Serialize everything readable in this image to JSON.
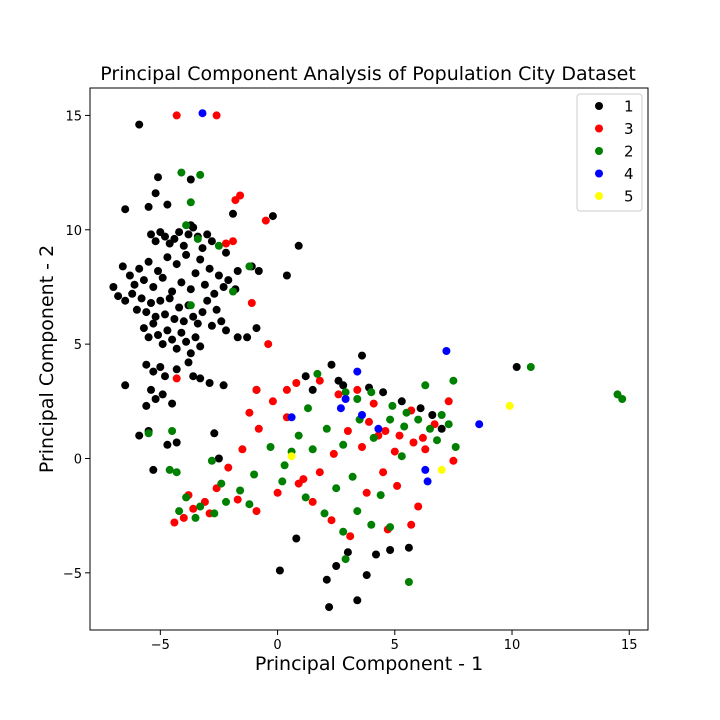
{
  "chart_data": {
    "type": "scatter",
    "title": "Principal Component Analysis of Population City Dataset",
    "xlabel": "Principal Component - 1",
    "ylabel": "Principal Component - 2",
    "xlim": [
      -8.0,
      15.8
    ],
    "ylim": [
      -7.5,
      16.2
    ],
    "xticks": [
      -5,
      0,
      5,
      10,
      15
    ],
    "yticks": [
      -5,
      0,
      5,
      10,
      15
    ],
    "xtick_labels": [
      "−5",
      "0",
      "5",
      "10",
      "15"
    ],
    "ytick_labels": [
      "−5",
      "0",
      "5",
      "10",
      "15"
    ],
    "grid": false,
    "legend_position": "top-right",
    "series": [
      {
        "name": "1",
        "color": "#000000",
        "points": [
          [
            -5.9,
            14.6
          ],
          [
            -5.1,
            12.3
          ],
          [
            -5.2,
            11.6
          ],
          [
            -6.5,
            10.9
          ],
          [
            -5.5,
            11.0
          ],
          [
            -4.7,
            11.1
          ],
          [
            -3.7,
            12.2
          ],
          [
            -1.9,
            10.7
          ],
          [
            -0.2,
            10.6
          ],
          [
            0.9,
            9.3
          ],
          [
            -2.2,
            9.0
          ],
          [
            -1.7,
            8.2
          ],
          [
            -1.1,
            8.4
          ],
          [
            -0.8,
            8.2
          ],
          [
            0.4,
            8.0
          ],
          [
            -5.4,
            9.8
          ],
          [
            -5.2,
            9.5
          ],
          [
            -5.0,
            9.9
          ],
          [
            -4.8,
            9.7
          ],
          [
            -4.6,
            9.4
          ],
          [
            -4.4,
            9.6
          ],
          [
            -4.2,
            9.9
          ],
          [
            -4.0,
            9.3
          ],
          [
            -3.8,
            9.8
          ],
          [
            -3.6,
            10.1
          ],
          [
            -3.4,
            9.7
          ],
          [
            -3.2,
            9.2
          ],
          [
            -3.0,
            9.8
          ],
          [
            -2.8,
            9.5
          ],
          [
            -3.7,
            10.2
          ],
          [
            -6.6,
            8.4
          ],
          [
            -6.3,
            8.0
          ],
          [
            -6.1,
            7.6
          ],
          [
            -5.9,
            8.3
          ],
          [
            -5.7,
            7.8
          ],
          [
            -5.5,
            8.6
          ],
          [
            -5.3,
            7.5
          ],
          [
            -5.1,
            8.2
          ],
          [
            -4.9,
            7.9
          ],
          [
            -4.7,
            8.8
          ],
          [
            -4.5,
            7.3
          ],
          [
            -4.3,
            8.5
          ],
          [
            -4.1,
            7.7
          ],
          [
            -3.9,
            8.9
          ],
          [
            -3.7,
            7.4
          ],
          [
            -3.5,
            8.1
          ],
          [
            -3.3,
            8.7
          ],
          [
            -3.1,
            7.6
          ],
          [
            -2.9,
            8.3
          ],
          [
            -2.7,
            7.2
          ],
          [
            -2.5,
            8.0
          ],
          [
            -2.3,
            7.5
          ],
          [
            -2.1,
            7.8
          ],
          [
            -1.8,
            7.4
          ],
          [
            -7.0,
            7.5
          ],
          [
            -6.8,
            7.1
          ],
          [
            -6.5,
            6.9
          ],
          [
            -6.2,
            7.2
          ],
          [
            -6.0,
            6.5
          ],
          [
            -5.8,
            7.0
          ],
          [
            -5.6,
            6.4
          ],
          [
            -5.4,
            6.8
          ],
          [
            -5.2,
            6.2
          ],
          [
            -5.0,
            6.9
          ],
          [
            -4.8,
            6.3
          ],
          [
            -4.6,
            7.0
          ],
          [
            -4.4,
            6.1
          ],
          [
            -4.2,
            6.6
          ],
          [
            -4.0,
            6.0
          ],
          [
            -3.8,
            6.7
          ],
          [
            -3.6,
            6.2
          ],
          [
            -3.4,
            5.9
          ],
          [
            -3.2,
            6.4
          ],
          [
            -3.0,
            6.9
          ],
          [
            -2.8,
            5.8
          ],
          [
            -2.6,
            6.5
          ],
          [
            -2.4,
            6.0
          ],
          [
            -2.2,
            5.6
          ],
          [
            -5.7,
            5.7
          ],
          [
            -5.5,
            5.3
          ],
          [
            -5.3,
            5.9
          ],
          [
            -5.1,
            5.4
          ],
          [
            -4.9,
            5.0
          ],
          [
            -4.7,
            5.6
          ],
          [
            -4.5,
            5.2
          ],
          [
            -4.3,
            4.8
          ],
          [
            -4.1,
            5.5
          ],
          [
            -3.9,
            5.1
          ],
          [
            -3.7,
            4.6
          ],
          [
            -3.5,
            5.3
          ],
          [
            -3.3,
            4.9
          ],
          [
            -1.7,
            5.3
          ],
          [
            -1.3,
            5.3
          ],
          [
            -0.9,
            5.7
          ],
          [
            -5.6,
            4.1
          ],
          [
            -5.3,
            3.8
          ],
          [
            -5.0,
            4.0
          ],
          [
            -4.8,
            3.6
          ],
          [
            -4.3,
            3.9
          ],
          [
            -3.8,
            4.2
          ],
          [
            -3.6,
            3.6
          ],
          [
            -6.5,
            3.2
          ],
          [
            -5.4,
            3.0
          ],
          [
            -5.2,
            2.6
          ],
          [
            -5.6,
            2.3
          ],
          [
            -4.9,
            2.8
          ],
          [
            -4.5,
            2.4
          ],
          [
            -3.3,
            3.5
          ],
          [
            -2.9,
            3.3
          ],
          [
            -2.3,
            3.2
          ],
          [
            -0.9,
            3.0
          ],
          [
            -5.9,
            1.0
          ],
          [
            -5.5,
            1.2
          ],
          [
            -4.7,
            0.6
          ],
          [
            -4.3,
            0.7
          ],
          [
            -5.3,
            -0.5
          ],
          [
            -2.7,
            1.1
          ],
          [
            -2.5,
            0.0
          ],
          [
            2.2,
            -6.5
          ],
          [
            3.4,
            -6.2
          ],
          [
            0.1,
            -4.9
          ],
          [
            2.1,
            -5.3
          ],
          [
            2.5,
            -4.7
          ],
          [
            4.8,
            -4.0
          ],
          [
            4.2,
            -4.2
          ],
          [
            3.0,
            -4.1
          ],
          [
            3.8,
            -5.1
          ],
          [
            2.3,
            4.1
          ],
          [
            3.6,
            4.5
          ],
          [
            5.6,
            -3.9
          ],
          [
            10.2,
            4.0
          ],
          [
            1.2,
            3.6
          ],
          [
            2.6,
            3.4
          ],
          [
            0.8,
            -3.5
          ],
          [
            1.5,
            3.0
          ],
          [
            2.8,
            3.2
          ],
          [
            3.9,
            3.1
          ],
          [
            4.5,
            2.9
          ],
          [
            5.3,
            2.5
          ],
          [
            6.1,
            2.2
          ],
          [
            6.6,
            1.9
          ],
          [
            7.0,
            1.3
          ]
        ]
      },
      {
        "name": "3",
        "color": "#ff0000",
        "points": [
          [
            -4.3,
            15.0
          ],
          [
            -2.6,
            15.0
          ],
          [
            -1.8,
            11.3
          ],
          [
            -1.6,
            11.5
          ],
          [
            -0.5,
            10.4
          ],
          [
            -2.2,
            9.4
          ],
          [
            -1.9,
            9.5
          ],
          [
            -1.1,
            6.8
          ],
          [
            -0.4,
            5.0
          ],
          [
            -4.3,
            3.5
          ],
          [
            -0.9,
            3.0
          ],
          [
            -1.2,
            2.0
          ],
          [
            0.4,
            3.0
          ],
          [
            0.8,
            3.3
          ],
          [
            1.8,
            3.4
          ],
          [
            2.6,
            2.8
          ],
          [
            3.4,
            3.0
          ],
          [
            4.1,
            2.4
          ],
          [
            3.9,
            1.6
          ],
          [
            4.6,
            1.2
          ],
          [
            5.2,
            1.0
          ],
          [
            5.8,
            0.7
          ],
          [
            6.3,
            0.4
          ],
          [
            6.7,
            1.5
          ],
          [
            7.3,
            2.5
          ],
          [
            7.5,
            -0.1
          ],
          [
            6.2,
            0.9
          ],
          [
            5.7,
            2.1
          ],
          [
            5.0,
            0.3
          ],
          [
            4.3,
            1.0
          ],
          [
            3.6,
            0.5
          ],
          [
            3.0,
            1.2
          ],
          [
            2.4,
            0.2
          ],
          [
            1.8,
            -0.6
          ],
          [
            1.1,
            -0.9
          ],
          [
            0.4,
            1.8
          ],
          [
            -0.2,
            2.5
          ],
          [
            -0.8,
            1.3
          ],
          [
            -1.5,
            0.4
          ],
          [
            -2.1,
            -0.4
          ],
          [
            -2.6,
            -1.3
          ],
          [
            -3.1,
            -1.9
          ],
          [
            -3.6,
            -2.2
          ],
          [
            -4.0,
            -2.6
          ],
          [
            -4.4,
            -2.8
          ],
          [
            -3.8,
            -1.6
          ],
          [
            -2.9,
            -2.4
          ],
          [
            -1.7,
            -1.8
          ],
          [
            -0.9,
            -2.3
          ],
          [
            0.0,
            -1.5
          ],
          [
            0.9,
            -1.1
          ],
          [
            1.5,
            -1.9
          ],
          [
            2.3,
            -2.7
          ],
          [
            3.1,
            -3.4
          ],
          [
            3.8,
            -1.5
          ],
          [
            4.5,
            -0.6
          ],
          [
            5.1,
            -1.2
          ],
          [
            5.7,
            -2.9
          ],
          [
            6.0,
            -2.1
          ],
          [
            4.7,
            -3.1
          ]
        ]
      },
      {
        "name": "2",
        "color": "#008000",
        "points": [
          [
            -4.1,
            12.5
          ],
          [
            -3.3,
            12.4
          ],
          [
            -3.7,
            11.2
          ],
          [
            -3.9,
            10.2
          ],
          [
            -3.4,
            9.6
          ],
          [
            -2.5,
            9.3
          ],
          [
            -1.2,
            8.4
          ],
          [
            -1.9,
            7.3
          ],
          [
            -3.7,
            6.7
          ],
          [
            -5.5,
            1.1
          ],
          [
            -4.5,
            1.2
          ],
          [
            -4.3,
            -0.6
          ],
          [
            -4.6,
            -0.5
          ],
          [
            -2.8,
            -0.1
          ],
          [
            2.9,
            2.9
          ],
          [
            3.4,
            2.6
          ],
          [
            4.0,
            2.9
          ],
          [
            4.9,
            2.3
          ],
          [
            5.5,
            2.0
          ],
          [
            6.0,
            1.7
          ],
          [
            6.5,
            1.3
          ],
          [
            7.0,
            1.9
          ],
          [
            7.3,
            1.5
          ],
          [
            7.5,
            3.4
          ],
          [
            7.6,
            0.5
          ],
          [
            6.3,
            3.2
          ],
          [
            5.4,
            1.4
          ],
          [
            4.8,
            1.7
          ],
          [
            4.1,
            0.9
          ],
          [
            3.5,
            1.7
          ],
          [
            2.8,
            0.6
          ],
          [
            2.1,
            1.3
          ],
          [
            1.5,
            0.4
          ],
          [
            0.9,
            1.0
          ],
          [
            0.3,
            -0.3
          ],
          [
            -0.3,
            0.5
          ],
          [
            -1.0,
            -0.7
          ],
          [
            -1.6,
            -1.4
          ],
          [
            -2.2,
            -1.9
          ],
          [
            -2.7,
            -2.4
          ],
          [
            -3.3,
            -2.1
          ],
          [
            -3.9,
            -1.7
          ],
          [
            -4.2,
            -2.3
          ],
          [
            -3.5,
            -2.6
          ],
          [
            -2.4,
            -1.1
          ],
          [
            -1.2,
            -2.0
          ],
          [
            0.2,
            -1.0
          ],
          [
            1.2,
            -1.7
          ],
          [
            2.0,
            -2.4
          ],
          [
            2.8,
            -3.2
          ],
          [
            3.4,
            -2.3
          ],
          [
            4.0,
            -2.9
          ],
          [
            4.8,
            -3.0
          ],
          [
            5.6,
            -5.4
          ],
          [
            2.9,
            -4.4
          ],
          [
            10.8,
            4.0
          ],
          [
            14.5,
            2.8
          ],
          [
            14.7,
            2.6
          ],
          [
            1.7,
            3.7
          ],
          [
            5.3,
            0.1
          ],
          [
            6.8,
            0.8
          ],
          [
            4.4,
            -1.6
          ],
          [
            3.2,
            -0.8
          ],
          [
            2.5,
            -1.3
          ],
          [
            1.3,
            2.2
          ],
          [
            0.6,
            0.3
          ]
        ]
      },
      {
        "name": "4",
        "color": "#0000ff",
        "points": [
          [
            -3.2,
            15.1
          ],
          [
            3.4,
            3.8
          ],
          [
            7.2,
            4.7
          ],
          [
            8.6,
            1.5
          ],
          [
            2.9,
            2.6
          ],
          [
            3.6,
            1.9
          ],
          [
            4.3,
            1.3
          ],
          [
            0.6,
            1.8
          ],
          [
            6.3,
            -0.5
          ],
          [
            6.4,
            -1.0
          ],
          [
            2.7,
            2.2
          ]
        ]
      },
      {
        "name": "5",
        "color": "#ffff00",
        "points": [
          [
            9.9,
            2.3
          ],
          [
            7.0,
            -0.5
          ],
          [
            0.6,
            0.1
          ]
        ]
      }
    ]
  }
}
